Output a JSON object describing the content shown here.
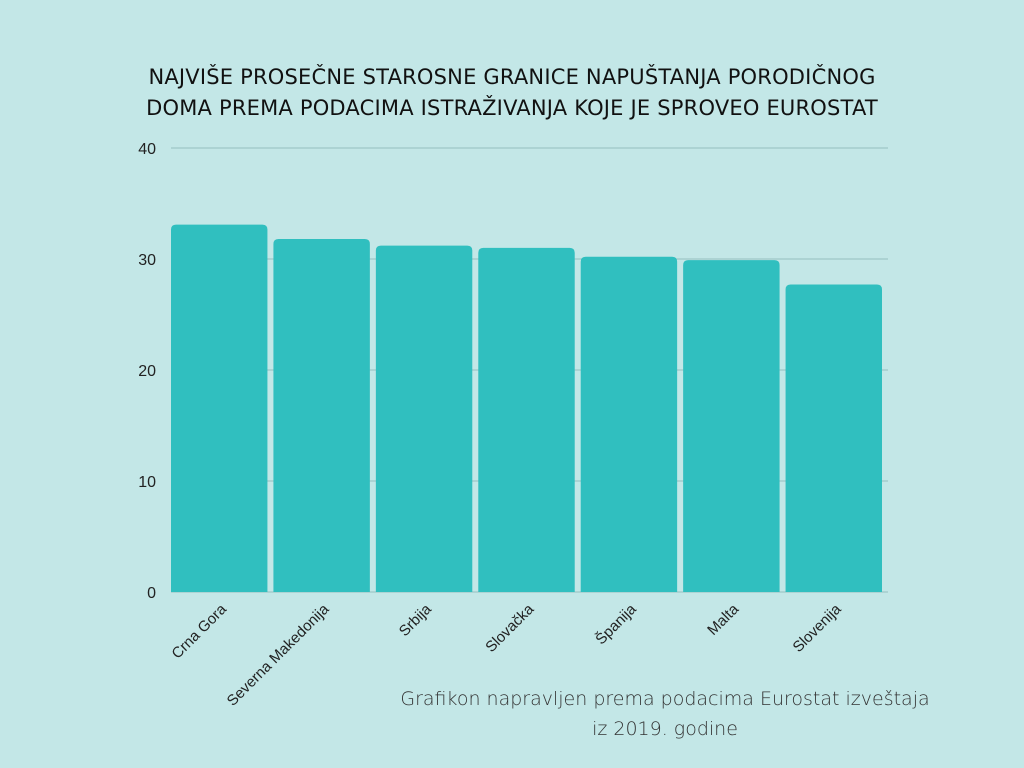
{
  "chart_data": {
    "type": "bar",
    "title_lines": [
      "NAJVIŠE PROSEČNE STAROSNE GRANICE NAPUŠTANJA PORODIČNOG",
      "DOMA PREMA PODACIMA ISTRAŽIVANJA KOJE JE SPROVEO EUROSTAT"
    ],
    "categories": [
      "Crna Gora",
      "Severna Makedonija",
      "Srbija",
      "Slovačka",
      "Španija",
      "Malta",
      "Slovenija"
    ],
    "values": [
      33.1,
      31.8,
      31.2,
      31.0,
      30.2,
      29.9,
      27.7
    ],
    "yticks": [
      0,
      10,
      20,
      30,
      40
    ],
    "ylim": [
      0,
      40
    ],
    "xlabel": "",
    "ylabel": "",
    "grid": true,
    "bar_color": "#30bfbf",
    "note_lines": [
      "Grafikon napravljen prema podacima Eurostat izveštaja",
      "iz 2019. godine"
    ]
  }
}
